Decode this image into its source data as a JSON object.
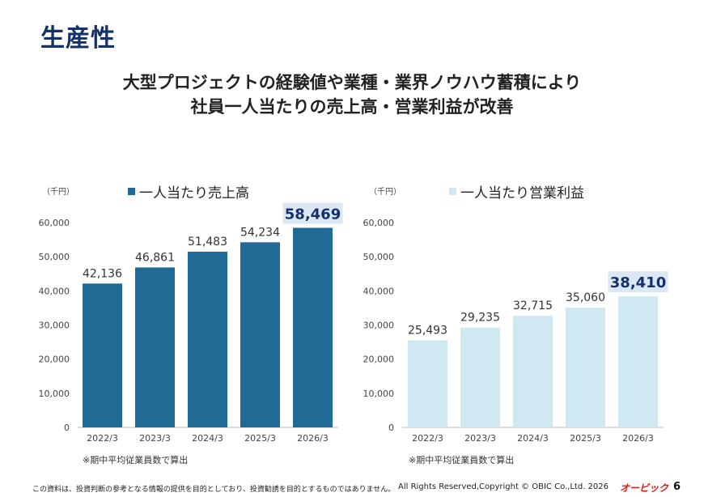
{
  "page": {
    "title": "生産性",
    "headline_line1": "大型プロジェクトの経験値や業種・業界ノウハウ蓄積により",
    "headline_line2": "社員一人当たりの売上高・営業利益が改善",
    "footer_disclaimer": "この資料は、投資判断の参考となる情報の提供を目的としており、投資勧誘を目的とするものではありません。",
    "footer_copyright": "All Rights Reserved,Copyright © OBIC Co.,Ltd. 2026",
    "footer_logo": "オービック",
    "page_number": "6"
  },
  "colors": {
    "title": "#14316b",
    "sales_bar": "#1f6b96",
    "profit_bar": "#d0e8f2",
    "highlight_box": "#dbe8f3"
  },
  "chart_data": [
    {
      "type": "bar",
      "unit_label": "（千円）",
      "legend": "一人当たり売上高",
      "categories": [
        "2022/3",
        "2023/3",
        "2024/3",
        "2025/3",
        "2026/3"
      ],
      "series": [
        {
          "name": "一人当たり売上高",
          "values": [
            42136,
            46861,
            51483,
            54234,
            58469
          ]
        }
      ],
      "value_labels": [
        "42,136",
        "46,861",
        "51,483",
        "54,234",
        "58,469"
      ],
      "yticks": [
        "0",
        "10,000",
        "20,000",
        "30,000",
        "40,000",
        "50,000",
        "60,000"
      ],
      "ylim": [
        0,
        60000
      ],
      "highlight_last": true,
      "note": "※期中平均従業員数で算出"
    },
    {
      "type": "bar",
      "unit_label": "（千円）",
      "legend": "一人当たり営業利益",
      "categories": [
        "2022/3",
        "2023/3",
        "2024/3",
        "2025/3",
        "2026/3"
      ],
      "series": [
        {
          "name": "一人当たり営業利益",
          "values": [
            25493,
            29235,
            32715,
            35060,
            38410
          ]
        }
      ],
      "value_labels": [
        "25,493",
        "29,235",
        "32,715",
        "35,060",
        "38,410"
      ],
      "yticks": [
        "0",
        "10,000",
        "20,000",
        "30,000",
        "40,000",
        "50,000",
        "60,000"
      ],
      "ylim": [
        0,
        60000
      ],
      "highlight_last": true,
      "note": "※期中平均従業員数で算出"
    }
  ]
}
